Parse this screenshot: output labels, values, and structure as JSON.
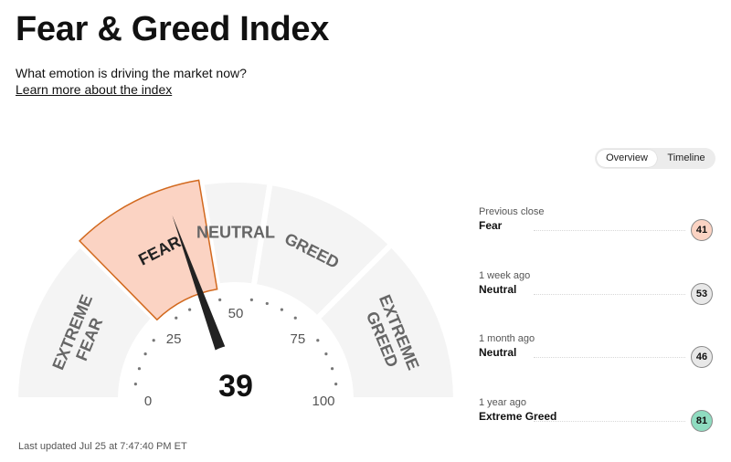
{
  "header": {
    "title": "Fear & Greed Index",
    "subtitle": "What emotion is driving the market now?",
    "learn_more": "Learn more about the index"
  },
  "view_toggle": {
    "tabs": [
      "Overview",
      "Timeline"
    ],
    "active": "Overview"
  },
  "gauge": {
    "value": 39,
    "current_zone": "FEAR",
    "zones": [
      {
        "name": "EXTREME FEAR",
        "lines": [
          "EXTREME",
          "FEAR"
        ],
        "range": [
          0,
          25
        ]
      },
      {
        "name": "FEAR",
        "lines": [
          "FEAR"
        ],
        "range": [
          25,
          45
        ]
      },
      {
        "name": "NEUTRAL",
        "lines": [
          "NEUTRAL"
        ],
        "range": [
          45,
          55
        ]
      },
      {
        "name": "GREED",
        "lines": [
          "GREED"
        ],
        "range": [
          55,
          75
        ]
      },
      {
        "name": "EXTREME GREED",
        "lines": [
          "EXTREME",
          "GREED"
        ],
        "range": [
          75,
          100
        ]
      }
    ],
    "scale_labels": [
      "0",
      "25",
      "50",
      "75",
      "100"
    ],
    "colors": {
      "active_zone_fill": "#fbd3c3",
      "active_zone_border": "#d2691e",
      "zone_fill": "#f4f4f4",
      "needle": "#222222"
    }
  },
  "history": [
    {
      "label": "Previous close",
      "value": "Fear",
      "score": "41",
      "color": "#fbd3c3"
    },
    {
      "label": "1 week ago",
      "value": "Neutral",
      "score": "53",
      "color": "#e8e8e8"
    },
    {
      "label": "1 month ago",
      "value": "Neutral",
      "score": "46",
      "color": "#e8e8e8"
    },
    {
      "label": "1 year ago",
      "value": "Extreme Greed",
      "score": "81",
      "color": "#8fdcc0"
    }
  ],
  "last_updated": "Last updated Jul 25 at 7:47:40 PM ET"
}
